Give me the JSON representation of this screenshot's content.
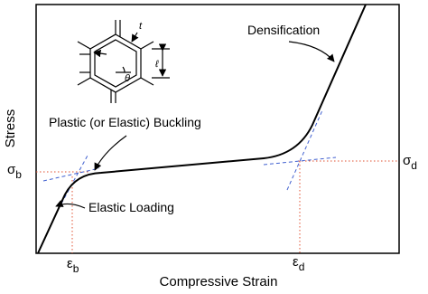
{
  "axes": {
    "y_label": "Stress",
    "x_label": "Compressive Strain"
  },
  "markers": {
    "sigma_b": {
      "symbol": "σ",
      "sub": "b"
    },
    "sigma_d": {
      "symbol": "σ",
      "sub": "d"
    },
    "epsilon_b": {
      "symbol": "ε",
      "sub": "b"
    },
    "epsilon_d": {
      "symbol": "ε",
      "sub": "d"
    }
  },
  "annotations": {
    "densification": "Densification",
    "buckling": "Plastic (or Elastic) Buckling",
    "elastic": "Elastic Loading"
  },
  "cell_labels": {
    "thickness": "t",
    "length": "ℓ",
    "angle": "θ"
  }
}
